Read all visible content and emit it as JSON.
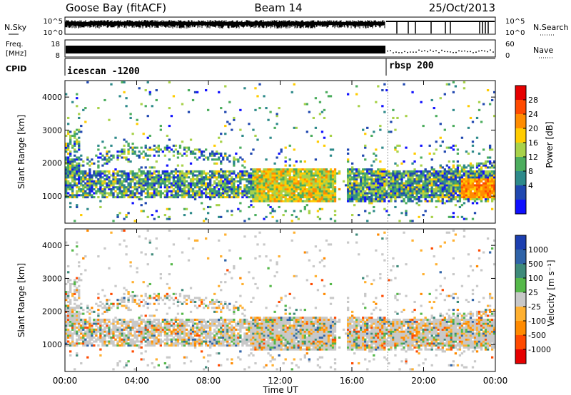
{
  "chart_data": {
    "type": "heatmap",
    "header": {
      "station": "Goose Bay (fitACF)",
      "beam": "Beam 14",
      "date": "25/Oct/2013"
    },
    "x": {
      "label": "Time UT",
      "ticks": [
        "00:00",
        "04:00",
        "08:00",
        "12:00",
        "16:00",
        "20:00",
        "00:00"
      ],
      "range_hours": [
        0,
        24
      ]
    },
    "y": {
      "label": "Slant Range [km]",
      "ticks": [
        1000,
        2000,
        3000,
        4000
      ],
      "range_km": [
        180,
        4500
      ]
    },
    "top_panels": {
      "nsky": {
        "left_label": "N.Sky",
        "left_ticks": [
          "10^5",
          "10^0"
        ],
        "right_label": "N.Search",
        "right_ticks": [
          "10^5",
          "10^0"
        ]
      },
      "freq": {
        "left_label_1": "Freq.",
        "left_label_2": "[MHz]",
        "left_ticks": [
          "18",
          "8"
        ],
        "right_label": "Nave",
        "right_ticks": [
          "60",
          "0"
        ]
      },
      "cpid": {
        "label": "CPID",
        "segments": [
          {
            "name": "icescan -1200",
            "start_hour": 0
          },
          {
            "name": "rbsp 200",
            "start_hour": 18.0
          }
        ]
      }
    },
    "power": {
      "colorbar_label": "Power [dB]",
      "ticks": [
        "28",
        "24",
        "20",
        "16",
        "12",
        "8",
        "4"
      ],
      "colors": [
        "#e60000",
        "#ff4a00",
        "#ff8c00",
        "#ffcc00",
        "#a8d24a",
        "#4cad5e",
        "#2e8a8a",
        "#2048b0",
        "#1010ff"
      ]
    },
    "velocity": {
      "colorbar_label": "Velocity [m s⁻¹]",
      "ticks": [
        "1000",
        "500",
        "100",
        "25",
        "-25",
        "-100",
        "-500",
        "-1000"
      ],
      "colors": [
        "#1c3fb0",
        "#2f63a8",
        "#3e8a7a",
        "#56b84a",
        "#c8c8c8",
        "#ffb030",
        "#ff8a00",
        "#ff4a00",
        "#e60000"
      ]
    }
  }
}
